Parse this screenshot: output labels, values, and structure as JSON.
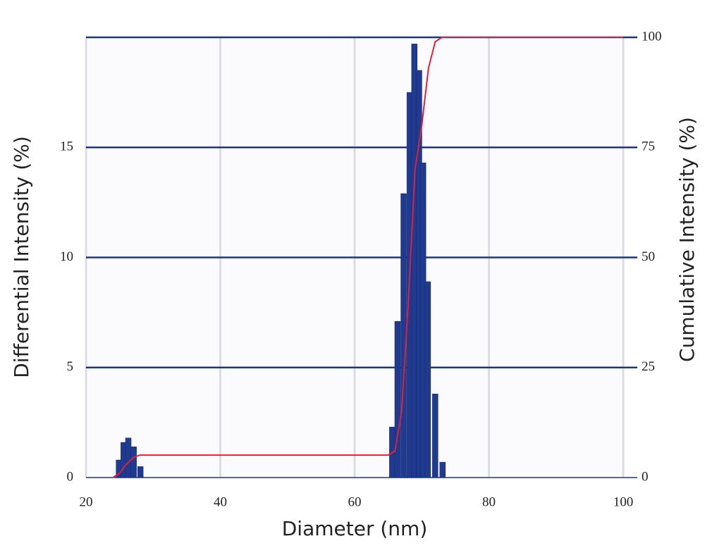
{
  "chart_data": {
    "type": "bar",
    "xlabel": "Diameter (nm)",
    "ylabel": "Differential Intensity (%)",
    "y2label": "Cumulative Intensity (%)",
    "xlim": [
      20,
      100
    ],
    "xticks": [
      20,
      40,
      60,
      80,
      100
    ],
    "ylim": [
      0,
      20
    ],
    "yticks": [
      0,
      5,
      10,
      15
    ],
    "y2lim": [
      0,
      100
    ],
    "y2ticks": [
      0,
      25,
      50,
      75,
      100
    ],
    "grid": true,
    "series": [
      {
        "type": "bar",
        "color": "#1f3a8f",
        "x": [
          24.9,
          25.6,
          26.3,
          27.1,
          28.1,
          65.6,
          66.4,
          67.3,
          68.2,
          68.9,
          69.6,
          70.2,
          70.9,
          72.0,
          73.1
        ],
        "values": [
          0.8,
          1.6,
          1.8,
          1.4,
          0.5,
          2.3,
          7.1,
          12.9,
          17.5,
          19.7,
          18.5,
          14.3,
          8.9,
          3.8,
          0.7
        ]
      },
      {
        "type": "line",
        "axis": "y2",
        "color": "#e0203a",
        "x": [
          24,
          25,
          26,
          27,
          28,
          65,
          66,
          67,
          68,
          69,
          70,
          71,
          72,
          73,
          100
        ],
        "values": [
          0,
          1,
          3,
          4.5,
          5.1,
          5.1,
          6,
          15,
          40,
          70,
          80,
          93,
          99,
          100,
          100
        ]
      }
    ]
  }
}
